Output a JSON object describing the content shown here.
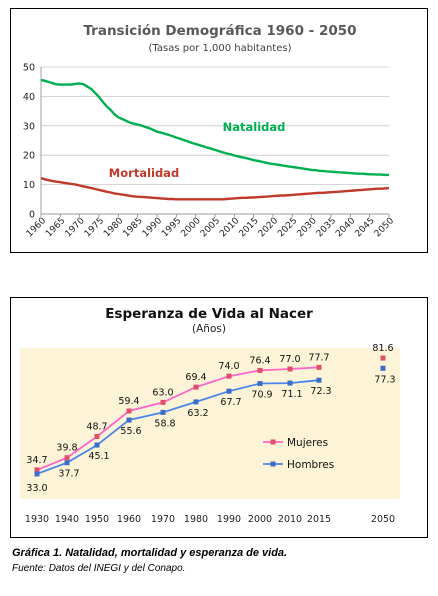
{
  "chart_data": [
    {
      "type": "line",
      "title": "Transición Demográfica 1960 - 2050",
      "subtitle": "(Tasas por 1,000 habitantes)",
      "x": [
        1960,
        1961,
        1962,
        1963,
        1964,
        1965,
        1966,
        1967,
        1968,
        1969,
        1970,
        1971,
        1972,
        1973,
        1974,
        1975,
        1976,
        1977,
        1978,
        1979,
        1980,
        1981,
        1982,
        1983,
        1984,
        1985,
        1986,
        1987,
        1988,
        1989,
        1990,
        1991,
        1992,
        1993,
        1994,
        1995,
        1996,
        1997,
        1998,
        1999,
        2000,
        2001,
        2002,
        2003,
        2004,
        2005,
        2006,
        2007,
        2008,
        2009,
        2010,
        2011,
        2012,
        2013,
        2014,
        2015,
        2016,
        2017,
        2018,
        2019,
        2020,
        2021,
        2022,
        2023,
        2024,
        2025,
        2026,
        2027,
        2028,
        2029,
        2030,
        2031,
        2032,
        2033,
        2034,
        2035,
        2036,
        2037,
        2038,
        2039,
        2040,
        2041,
        2042,
        2043,
        2044,
        2045,
        2046,
        2047,
        2048,
        2049,
        2050
      ],
      "xticks": [
        "1960",
        "1965",
        "1970",
        "1975",
        "1980",
        "1985",
        "1990",
        "1995",
        "2000",
        "2005",
        "2010",
        "2015",
        "2020",
        "2025",
        "2030",
        "2035",
        "2040",
        "2045",
        "2050"
      ],
      "yticks": [
        "0",
        "10",
        "20",
        "30",
        "40",
        "50"
      ],
      "xlim": [
        1960,
        2050
      ],
      "ylim": [
        0,
        50
      ],
      "series": [
        {
          "name": "Natalidad",
          "color": "#00b050",
          "values": [
            45.6,
            45.3,
            44.9,
            44.5,
            44.1,
            44.0,
            44.0,
            44.0,
            44.0,
            44.3,
            44.4,
            44.1,
            43.3,
            42.5,
            41.2,
            39.8,
            38.1,
            36.6,
            35.4,
            33.9,
            32.9,
            32.3,
            31.7,
            31.1,
            30.7,
            30.4,
            30.1,
            29.6,
            29.2,
            28.6,
            28.0,
            27.7,
            27.3,
            26.9,
            26.5,
            26.0,
            25.6,
            25.1,
            24.7,
            24.2,
            23.8,
            23.4,
            23.0,
            22.6,
            22.2,
            21.8,
            21.4,
            21.0,
            20.6,
            20.3,
            19.9,
            19.6,
            19.3,
            19.0,
            18.7,
            18.3,
            18.1,
            17.8,
            17.5,
            17.2,
            17.0,
            16.8,
            16.6,
            16.4,
            16.2,
            16.0,
            15.8,
            15.6,
            15.4,
            15.2,
            15.0,
            14.9,
            14.7,
            14.6,
            14.5,
            14.4,
            14.3,
            14.2,
            14.1,
            14.0,
            13.9,
            13.8,
            13.7,
            13.7,
            13.6,
            13.5,
            13.5,
            13.4,
            13.4,
            13.3,
            13.3
          ]
        },
        {
          "name": "Mortalidad",
          "color": "#c0392b",
          "values": [
            12.2,
            11.8,
            11.5,
            11.2,
            11.0,
            10.8,
            10.6,
            10.4,
            10.2,
            10.0,
            9.7,
            9.4,
            9.1,
            8.8,
            8.5,
            8.2,
            7.9,
            7.6,
            7.3,
            7.0,
            6.8,
            6.6,
            6.4,
            6.2,
            6.0,
            5.9,
            5.8,
            5.7,
            5.6,
            5.5,
            5.4,
            5.3,
            5.2,
            5.1,
            5.1,
            5.0,
            5.0,
            5.0,
            5.0,
            5.0,
            5.0,
            5.0,
            5.0,
            5.0,
            5.0,
            5.0,
            5.0,
            5.0,
            5.1,
            5.2,
            5.3,
            5.4,
            5.5,
            5.5,
            5.6,
            5.6,
            5.7,
            5.8,
            5.9,
            6.0,
            6.1,
            6.2,
            6.3,
            6.3,
            6.4,
            6.5,
            6.6,
            6.7,
            6.8,
            6.9,
            7.0,
            7.1,
            7.2,
            7.2,
            7.3,
            7.4,
            7.5,
            7.6,
            7.7,
            7.8,
            7.9,
            8.0,
            8.1,
            8.2,
            8.3,
            8.4,
            8.5,
            8.6,
            8.6,
            8.7,
            8.8
          ]
        }
      ],
      "labels": {
        "natalidad": "Natalidad",
        "mortalidad": "Mortalidad"
      }
    },
    {
      "type": "line",
      "title": "Esperanza de Vida al Nacer",
      "subtitle": "(Años)",
      "categories": [
        "1930",
        "1940",
        "1950",
        "1960",
        "1970",
        "1980",
        "1990",
        "2000",
        "2010",
        "2015",
        "2050"
      ],
      "series": [
        {
          "name": "Mujeres",
          "color": "#ff66cc",
          "marker_color": "#e0506a",
          "values": [
            34.7,
            39.8,
            48.7,
            59.4,
            63.0,
            69.4,
            74.0,
            76.4,
            77.0,
            77.7,
            81.6
          ],
          "labels": [
            "34.7",
            "39.8",
            "48.7",
            "59.4",
            "63.0",
            "69.4",
            "74.0",
            "76.4",
            "77.0",
            "77.7",
            "81.6"
          ]
        },
        {
          "name": "Hombres",
          "color": "#4a86e8",
          "marker_color": "#3a6fc9",
          "values": [
            33.0,
            37.7,
            45.1,
            55.6,
            58.8,
            63.2,
            67.7,
            70.9,
            71.1,
            72.3,
            77.3
          ],
          "labels": [
            "33.0",
            "37.7",
            "45.1",
            "55.6",
            "58.8",
            "63.2",
            "67.7",
            "70.9",
            "71.1",
            "72.3",
            "77.3"
          ]
        }
      ],
      "legend": "center-right",
      "ylim": [
        25,
        90
      ]
    }
  ],
  "caption": {
    "title": "Gráfica 1. Natalidad, mortalidad y esperanza de vida.",
    "source": "Fuente: Datos del INEGI y del Conapo."
  }
}
